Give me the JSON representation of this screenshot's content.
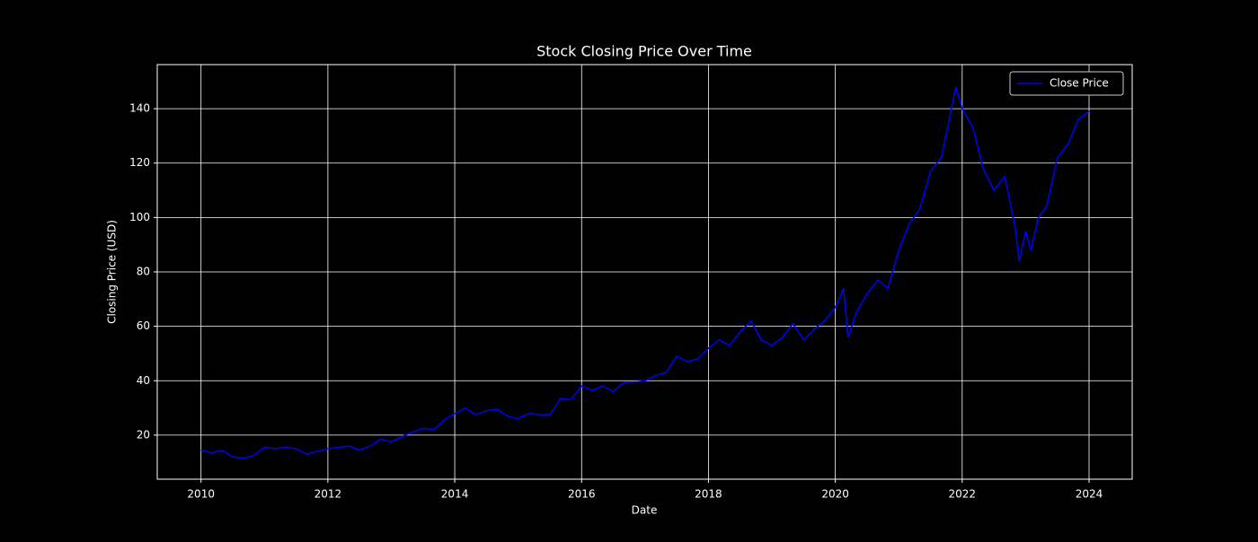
{
  "chart_data": {
    "type": "line",
    "title": "Stock Closing Price Over Time",
    "x_label": "Date",
    "y_label": "Closing Price (USD)",
    "x": [
      2010.0,
      2010.17,
      2010.33,
      2010.5,
      2010.67,
      2010.83,
      2011.0,
      2011.17,
      2011.33,
      2011.5,
      2011.67,
      2011.83,
      2012.0,
      2012.17,
      2012.33,
      2012.5,
      2012.67,
      2012.83,
      2013.0,
      2013.17,
      2013.33,
      2013.5,
      2013.67,
      2013.83,
      2014.0,
      2014.17,
      2014.33,
      2014.5,
      2014.67,
      2014.83,
      2015.0,
      2015.17,
      2015.33,
      2015.5,
      2015.67,
      2015.83,
      2016.0,
      2016.17,
      2016.33,
      2016.5,
      2016.67,
      2016.83,
      2017.0,
      2017.17,
      2017.33,
      2017.5,
      2017.67,
      2017.83,
      2018.0,
      2018.17,
      2018.33,
      2018.5,
      2018.67,
      2018.83,
      2019.0,
      2019.17,
      2019.33,
      2019.5,
      2019.67,
      2019.83,
      2020.0,
      2020.13,
      2020.2,
      2020.33,
      2020.5,
      2020.67,
      2020.83,
      2021.0,
      2021.17,
      2021.33,
      2021.5,
      2021.67,
      2021.83,
      2021.9,
      2022.0,
      2022.17,
      2022.33,
      2022.5,
      2022.67,
      2022.83,
      2022.9,
      2023.0,
      2023.08,
      2023.2,
      2023.33,
      2023.5,
      2023.67,
      2023.83,
      2024.0
    ],
    "series": [
      {
        "name": "Close Price",
        "color": "#0000ff",
        "values": [
          14.5,
          13.5,
          14.5,
          12,
          11.5,
          12.5,
          15.5,
          15,
          15.5,
          15,
          13,
          14,
          15,
          15.5,
          16,
          14.5,
          16,
          18.5,
          17.5,
          19.5,
          21,
          22.5,
          22,
          25.5,
          28,
          30,
          27.5,
          29,
          29.5,
          27,
          26,
          28,
          27.5,
          27.5,
          33.5,
          33,
          38,
          36.5,
          38,
          36,
          39.5,
          39.5,
          40,
          42,
          43,
          49,
          47,
          48,
          52,
          55,
          53,
          58,
          62,
          55,
          53,
          56,
          61,
          55,
          59,
          62,
          67,
          74,
          56,
          65,
          72,
          77,
          74,
          88,
          98,
          103,
          117,
          122,
          140,
          148,
          140,
          133,
          118,
          110,
          115,
          97,
          84,
          95,
          88,
          100,
          104,
          122,
          127,
          136,
          139
        ]
      }
    ],
    "xlim": [
      2009.31,
      2024.68
    ],
    "xticks": [
      2010,
      2012,
      2014,
      2016,
      2018,
      2020,
      2022,
      2024
    ],
    "ylim": [
      3.8,
      156.2
    ],
    "yticks": [
      20,
      40,
      60,
      80,
      100,
      120,
      140
    ],
    "grid": true,
    "legend": "upper-right"
  }
}
